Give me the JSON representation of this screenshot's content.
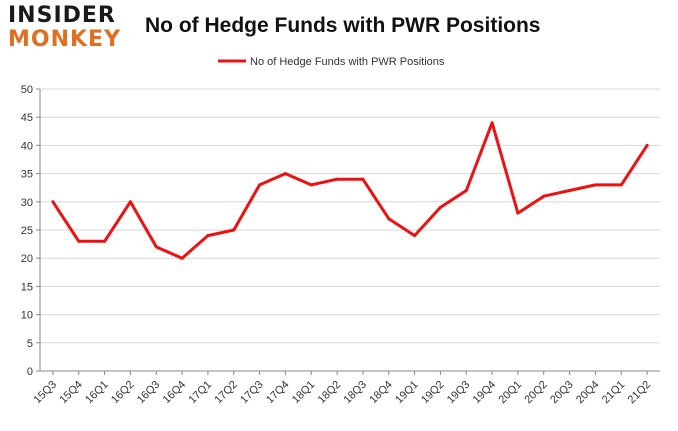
{
  "header": {
    "logo_top": "INSIDER",
    "logo_bottom": "MONKEY",
    "title": "No of Hedge Funds with PWR Positions"
  },
  "colors": {
    "line": "#ee1111",
    "grid": "#d7d7d7",
    "axis": "#888888",
    "logo_top": "#1a1a1a",
    "logo_bottom": "#e0701f"
  },
  "chart_data": {
    "type": "line",
    "title": "No of Hedge Funds with PWR Positions",
    "categories": [
      "15Q3",
      "15Q4",
      "16Q1",
      "16Q2",
      "16Q3",
      "16Q4",
      "17Q1",
      "17Q2",
      "17Q3",
      "17Q4",
      "18Q1",
      "18Q2",
      "18Q3",
      "18Q4",
      "19Q1",
      "19Q2",
      "19Q3",
      "19Q4",
      "20Q1",
      "20Q2",
      "20Q3",
      "20Q4",
      "21Q1",
      "21Q2"
    ],
    "series": [
      {
        "name": "No of Hedge Funds with PWR Positions",
        "values": [
          30,
          23,
          23,
          30,
          22,
          20,
          24,
          25,
          33,
          35,
          33,
          34,
          34,
          27,
          24,
          29,
          32,
          44,
          28,
          31,
          32,
          33,
          33,
          40
        ]
      }
    ],
    "ylim": [
      0,
      50
    ],
    "yticks": [
      0,
      5,
      10,
      15,
      20,
      25,
      30,
      35,
      40,
      45,
      50
    ],
    "grid": true,
    "legend_position": "top-center"
  }
}
